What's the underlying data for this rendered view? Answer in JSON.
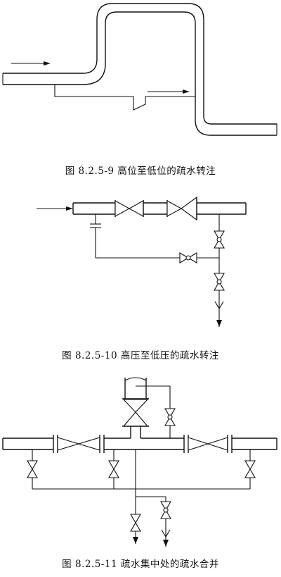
{
  "captions": {
    "fig1": "图 8.2.5-9  高位至低位的疏水转注",
    "fig2": "图 8.2.5-10  高压至低压的疏水转注",
    "fig3": "图 8.2.5-11  疏水集中处的疏水合并"
  }
}
